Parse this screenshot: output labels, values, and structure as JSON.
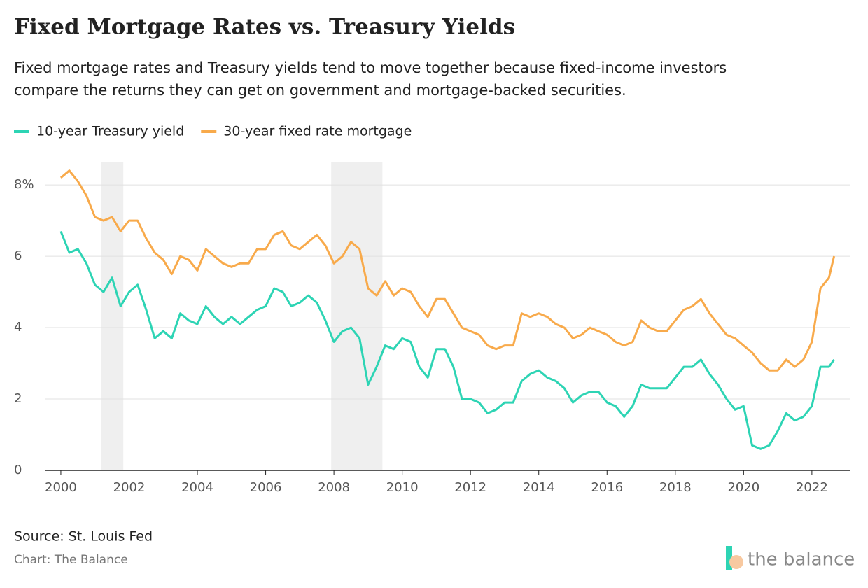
{
  "chart_data": {
    "type": "line",
    "title": "Fixed Mortgage Rates vs. Treasury Yields",
    "subtitle": [
      "Fixed mortgage rates and Treasury yields tend to move together because fixed-income investors",
      "compare the returns they can get on government and mortgage-backed securities."
    ],
    "source": "Source: St. Louis Fed",
    "credit": "Chart: The Balance",
    "logo": "the balance",
    "x": [
      2000.0,
      2000.25,
      2000.5,
      2000.75,
      2001.0,
      2001.25,
      2001.5,
      2001.75,
      2002.0,
      2002.25,
      2002.5,
      2002.75,
      2003.0,
      2003.25,
      2003.5,
      2003.75,
      2004.0,
      2004.25,
      2004.5,
      2004.75,
      2005.0,
      2005.25,
      2005.5,
      2005.75,
      2006.0,
      2006.25,
      2006.5,
      2006.75,
      2007.0,
      2007.25,
      2007.5,
      2007.75,
      2008.0,
      2008.25,
      2008.5,
      2008.75,
      2009.0,
      2009.25,
      2009.5,
      2009.75,
      2010.0,
      2010.25,
      2010.5,
      2010.75,
      2011.0,
      2011.25,
      2011.5,
      2011.75,
      2012.0,
      2012.25,
      2012.5,
      2012.75,
      2013.0,
      2013.25,
      2013.5,
      2013.75,
      2014.0,
      2014.25,
      2014.5,
      2014.75,
      2015.0,
      2015.25,
      2015.5,
      2015.75,
      2016.0,
      2016.25,
      2016.5,
      2016.75,
      2017.0,
      2017.25,
      2017.5,
      2017.75,
      2018.0,
      2018.25,
      2018.5,
      2018.75,
      2019.0,
      2019.25,
      2019.5,
      2019.75,
      2020.0,
      2020.25,
      2020.5,
      2020.75,
      2021.0,
      2021.25,
      2021.5,
      2021.75,
      2022.0,
      2022.25,
      2022.5,
      2022.65
    ],
    "series": [
      {
        "name": "10-year Treasury yield",
        "color": "#2dd4b4",
        "values": [
          6.7,
          6.1,
          6.2,
          5.8,
          5.2,
          5.0,
          5.4,
          4.6,
          5.0,
          5.2,
          4.5,
          3.7,
          3.9,
          3.7,
          4.4,
          4.2,
          4.1,
          4.6,
          4.3,
          4.1,
          4.3,
          4.1,
          4.3,
          4.5,
          4.6,
          5.1,
          5.0,
          4.6,
          4.7,
          4.9,
          4.7,
          4.2,
          3.6,
          3.9,
          4.0,
          3.7,
          2.4,
          2.9,
          3.5,
          3.4,
          3.7,
          3.6,
          2.9,
          2.6,
          3.4,
          3.4,
          2.9,
          2.0,
          2.0,
          1.9,
          1.6,
          1.7,
          1.9,
          1.9,
          2.5,
          2.7,
          2.8,
          2.6,
          2.5,
          2.3,
          1.9,
          2.1,
          2.2,
          2.2,
          1.9,
          1.8,
          1.5,
          1.8,
          2.4,
          2.3,
          2.3,
          2.3,
          2.6,
          2.9,
          2.9,
          3.1,
          2.7,
          2.4,
          2.0,
          1.7,
          1.8,
          0.7,
          0.6,
          0.7,
          1.1,
          1.6,
          1.4,
          1.5,
          1.8,
          2.9,
          2.9,
          3.1
        ]
      },
      {
        "name": "30-year fixed rate mortgage",
        "color": "#f8aa4b",
        "values": [
          8.2,
          8.4,
          8.1,
          7.7,
          7.1,
          7.0,
          7.1,
          6.7,
          7.0,
          7.0,
          6.5,
          6.1,
          5.9,
          5.5,
          6.0,
          5.9,
          5.6,
          6.2,
          6.0,
          5.8,
          5.7,
          5.8,
          5.8,
          6.2,
          6.2,
          6.6,
          6.7,
          6.3,
          6.2,
          6.4,
          6.6,
          6.3,
          5.8,
          6.0,
          6.4,
          6.2,
          5.1,
          4.9,
          5.3,
          4.9,
          5.1,
          5.0,
          4.6,
          4.3,
          4.8,
          4.8,
          4.4,
          4.0,
          3.9,
          3.8,
          3.5,
          3.4,
          3.5,
          3.5,
          4.4,
          4.3,
          4.4,
          4.3,
          4.1,
          4.0,
          3.7,
          3.8,
          4.0,
          3.9,
          3.8,
          3.6,
          3.5,
          3.6,
          4.2,
          4.0,
          3.9,
          3.9,
          4.2,
          4.5,
          4.6,
          4.8,
          4.4,
          4.1,
          3.8,
          3.7,
          3.5,
          3.3,
          3.0,
          2.8,
          2.8,
          3.1,
          2.9,
          3.1,
          3.6,
          5.1,
          5.4,
          6.0
        ]
      }
    ],
    "shaded_periods": [
      [
        2001.17,
        2001.83
      ],
      [
        2007.92,
        2009.42
      ]
    ],
    "xlim": [
      1999.55,
      2023.13
    ],
    "xticks": [
      2000,
      2002,
      2004,
      2006,
      2008,
      2010,
      2012,
      2014,
      2016,
      2018,
      2020,
      2022
    ],
    "ylim": [
      0,
      8.63
    ],
    "yticks": [
      0,
      2,
      4,
      6,
      {
        "value": 8,
        "label": "8%"
      }
    ],
    "grid": true
  }
}
